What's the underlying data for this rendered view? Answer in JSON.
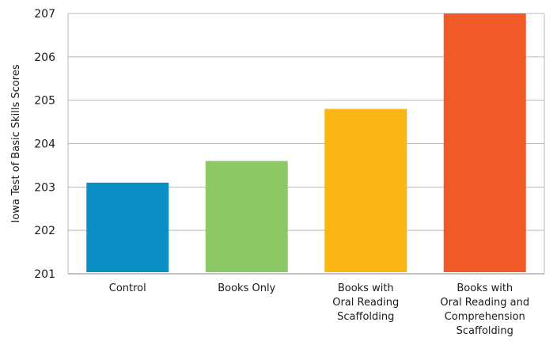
{
  "chart_data": {
    "type": "bar",
    "categories": [
      [
        "Control"
      ],
      [
        "Books Only"
      ],
      [
        "Books with",
        "Oral Reading",
        "Scaffolding"
      ],
      [
        "Books with",
        "Oral Reading and",
        "Comprehension",
        "Scaffolding"
      ]
    ],
    "values": [
      203.1,
      203.6,
      204.8,
      207.0
    ],
    "colors": [
      "#0b8ec3",
      "#8dc866",
      "#fbb615",
      "#f05a28"
    ],
    "ylabel": "Iowa Test of Basic Skills Scores",
    "ylim": [
      201,
      207
    ],
    "yticks": [
      201,
      202,
      203,
      204,
      205,
      206,
      207
    ],
    "grid": true
  }
}
